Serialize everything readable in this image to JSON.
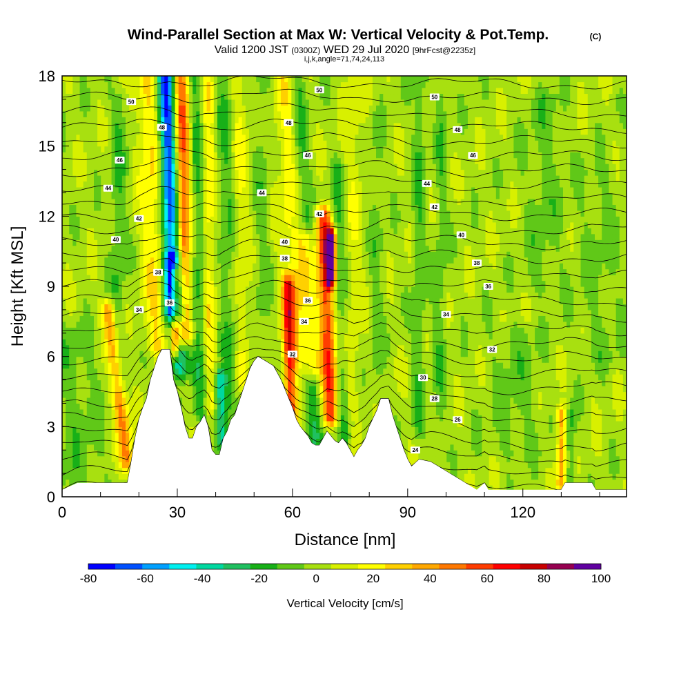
{
  "chart_data": {
    "type": "heatmap",
    "title": "Wind-Parallel Section at Max W: Vertical Velocity & Pot.Temp.",
    "title_mark": "(C)",
    "subtitle": {
      "valid": "Valid 1200 JST",
      "zulu": "(0300Z)",
      "date": "WED 29 Jul 2020",
      "forecast": "[9hrFcst@2235z]"
    },
    "section_info": "i,j,k,angle=71,74,24,113",
    "xlabel": "Distance [nm]",
    "ylabel": "Height [Kft MSL]",
    "xlim": [
      0,
      147
    ],
    "ylim": [
      0,
      18
    ],
    "x_ticks": [
      0,
      30,
      60,
      90,
      120
    ],
    "y_ticks": [
      0,
      3,
      6,
      9,
      12,
      15,
      18
    ],
    "colorbar": {
      "label": "Vertical Velocity [cm/s]",
      "ticks": [
        -80,
        -60,
        -40,
        -20,
        0,
        20,
        40,
        60,
        80,
        100
      ],
      "bounds": [
        -80,
        -70,
        -60,
        -50,
        -40,
        -30,
        -20,
        -10,
        0,
        10,
        20,
        30,
        40,
        50,
        60,
        70,
        80,
        90,
        100
      ],
      "colors": [
        "#0000ff",
        "#0050ff",
        "#00a0ff",
        "#00f0f0",
        "#00d8a0",
        "#20c060",
        "#18b018",
        "#60c818",
        "#a8e010",
        "#d8f000",
        "#ffff00",
        "#ffd000",
        "#ffa800",
        "#ff7800",
        "#ff3c00",
        "#ff0000",
        "#c80000",
        "#960050",
        "#6000a0"
      ]
    },
    "theta_contour_labels": [
      {
        "value": "24",
        "x": 92,
        "y": 2.0
      },
      {
        "value": "26",
        "x": 103,
        "y": 3.3
      },
      {
        "value": "28",
        "x": 97,
        "y": 4.2
      },
      {
        "value": "30",
        "x": 94,
        "y": 5.1
      },
      {
        "value": "32",
        "x": 60,
        "y": 6.1
      },
      {
        "value": "32",
        "x": 112,
        "y": 6.3
      },
      {
        "value": "34",
        "x": 20,
        "y": 8.0
      },
      {
        "value": "34",
        "x": 63,
        "y": 7.5
      },
      {
        "value": "34",
        "x": 100,
        "y": 7.8
      },
      {
        "value": "36",
        "x": 28,
        "y": 8.3
      },
      {
        "value": "36",
        "x": 64,
        "y": 8.4
      },
      {
        "value": "36",
        "x": 111,
        "y": 9.0
      },
      {
        "value": "38",
        "x": 25,
        "y": 9.6
      },
      {
        "value": "38",
        "x": 58,
        "y": 10.2
      },
      {
        "value": "38",
        "x": 108,
        "y": 10.0
      },
      {
        "value": "40",
        "x": 14,
        "y": 11.0
      },
      {
        "value": "40",
        "x": 58,
        "y": 10.9
      },
      {
        "value": "40",
        "x": 104,
        "y": 11.2
      },
      {
        "value": "42",
        "x": 20,
        "y": 11.9
      },
      {
        "value": "42",
        "x": 67,
        "y": 12.1
      },
      {
        "value": "42",
        "x": 97,
        "y": 12.4
      },
      {
        "value": "44",
        "x": 12,
        "y": 13.2
      },
      {
        "value": "44",
        "x": 52,
        "y": 13.0
      },
      {
        "value": "44",
        "x": 95,
        "y": 13.4
      },
      {
        "value": "46",
        "x": 15,
        "y": 14.4
      },
      {
        "value": "46",
        "x": 64,
        "y": 14.6
      },
      {
        "value": "46",
        "x": 107,
        "y": 14.6
      },
      {
        "value": "48",
        "x": 26,
        "y": 15.8
      },
      {
        "value": "48",
        "x": 59,
        "y": 16.0
      },
      {
        "value": "48",
        "x": 103,
        "y": 15.7
      },
      {
        "value": "50",
        "x": 18,
        "y": 16.9
      },
      {
        "value": "50",
        "x": 67,
        "y": 17.4
      },
      {
        "value": "50",
        "x": 97,
        "y": 17.1
      }
    ],
    "terrain_heights_kft": [
      [
        0,
        0.3
      ],
      [
        4,
        0.6
      ],
      [
        17,
        0.6
      ],
      [
        18,
        1.5
      ],
      [
        19,
        2.5
      ],
      [
        20,
        3.3
      ],
      [
        21,
        3.8
      ],
      [
        22,
        4.2
      ],
      [
        23,
        5.0
      ],
      [
        24,
        5.5
      ],
      [
        25,
        6.0
      ],
      [
        26,
        6.3
      ],
      [
        28,
        6.3
      ],
      [
        29,
        5.0
      ],
      [
        30,
        4.5
      ],
      [
        31,
        3.8
      ],
      [
        32,
        3.0
      ],
      [
        33,
        2.5
      ],
      [
        34,
        2.5
      ],
      [
        35,
        3.0
      ],
      [
        36,
        3.2
      ],
      [
        37,
        3.5
      ],
      [
        38,
        3.0
      ],
      [
        39,
        2.0
      ],
      [
        40,
        1.8
      ],
      [
        41,
        1.8
      ],
      [
        42,
        2.5
      ],
      [
        43,
        2.8
      ],
      [
        44,
        3.3
      ],
      [
        45,
        3.5
      ],
      [
        46,
        4.0
      ],
      [
        47,
        4.5
      ],
      [
        48,
        5.0
      ],
      [
        49,
        5.5
      ],
      [
        50,
        5.8
      ],
      [
        51,
        6.0
      ],
      [
        54,
        5.7
      ],
      [
        55,
        5.6
      ],
      [
        56,
        5.3
      ],
      [
        57,
        5.0
      ],
      [
        58,
        4.6
      ],
      [
        59,
        4.2
      ],
      [
        60,
        3.8
      ],
      [
        61,
        3.3
      ],
      [
        62,
        3.0
      ],
      [
        63,
        2.8
      ],
      [
        64,
        2.6
      ],
      [
        65,
        2.3
      ],
      [
        66,
        2.2
      ],
      [
        67,
        2.2
      ],
      [
        68,
        2.5
      ],
      [
        69,
        2.8
      ],
      [
        70,
        2.6
      ],
      [
        71,
        2.4
      ],
      [
        72,
        2.3
      ],
      [
        73,
        2.5
      ],
      [
        74,
        2.3
      ],
      [
        75,
        2.0
      ],
      [
        76,
        1.7
      ],
      [
        77,
        2.0
      ],
      [
        78,
        2.2
      ],
      [
        79,
        2.5
      ],
      [
        80,
        3.0
      ],
      [
        82,
        3.7
      ],
      [
        83,
        4.2
      ],
      [
        85,
        4.2
      ],
      [
        86,
        3.5
      ],
      [
        87,
        3.0
      ],
      [
        88,
        2.5
      ],
      [
        89,
        2.0
      ],
      [
        90,
        1.6
      ],
      [
        91,
        1.3
      ],
      [
        93,
        1.6
      ],
      [
        96,
        1.5
      ],
      [
        98,
        1.3
      ],
      [
        100,
        1.1
      ],
      [
        102,
        0.9
      ],
      [
        104,
        0.7
      ],
      [
        106,
        0.5
      ],
      [
        108,
        0.3
      ],
      [
        110,
        0.6
      ],
      [
        111,
        0.3
      ],
      [
        130,
        0.3
      ],
      [
        131,
        0.6
      ],
      [
        138,
        0.6
      ],
      [
        139,
        0.3
      ],
      [
        147,
        0.3
      ]
    ],
    "w_features": [
      {
        "x0": 29,
        "y0": 8.0,
        "x1": 27,
        "y1": 18,
        "w": 2.2,
        "v": -75
      },
      {
        "x0": 31,
        "y0": 5.5,
        "x1": 29,
        "y1": 10,
        "w": 2.5,
        "v": -45
      },
      {
        "x0": 32,
        "y0": 7.0,
        "x1": 31,
        "y1": 18,
        "w": 2.0,
        "v": 55
      },
      {
        "x0": 29.5,
        "y0": 6.5,
        "x1": 29.5,
        "y1": 9.5,
        "w": 1.2,
        "v": 65
      },
      {
        "x0": 25,
        "y0": 6.5,
        "x1": 22,
        "y1": 18,
        "w": 3.0,
        "v": 25
      },
      {
        "x0": 17,
        "y0": 1.5,
        "x1": 12,
        "y1": 8,
        "w": 1.8,
        "v": 50
      },
      {
        "x0": 14,
        "y0": 5,
        "x1": 15,
        "y1": 17,
        "w": 2.2,
        "v": -15
      },
      {
        "x0": 70,
        "y0": 3.5,
        "x1": 68,
        "y1": 12,
        "w": 2.0,
        "v": 65
      },
      {
        "x0": 70,
        "y0": 9.5,
        "x1": 70,
        "y1": 11,
        "w": 1.2,
        "v": 95
      },
      {
        "x0": 65,
        "y0": 5.5,
        "x1": 63,
        "y1": 11,
        "w": 2.4,
        "v": 35
      },
      {
        "x0": 59.5,
        "y0": 3.5,
        "x1": 59,
        "y1": 9,
        "w": 1.6,
        "v": 60
      },
      {
        "x0": 61,
        "y0": 6,
        "x1": 58,
        "y1": 18,
        "w": 3.0,
        "v": 20
      },
      {
        "x0": 66,
        "y0": 2.5,
        "x1": 61,
        "y1": 18,
        "w": 2.2,
        "v": -20
      },
      {
        "x0": 73.5,
        "y0": 2.5,
        "x1": 72,
        "y1": 14,
        "w": 1.8,
        "v": -18
      },
      {
        "x0": 75,
        "y0": 4,
        "x1": 76,
        "y1": 18,
        "w": 2.5,
        "v": 12
      },
      {
        "x0": 44,
        "y0": 4,
        "x1": 42,
        "y1": 18,
        "w": 2.5,
        "v": -15
      },
      {
        "x0": 41.5,
        "y0": 2.5,
        "x1": 41,
        "y1": 5,
        "w": 1.5,
        "v": -45
      },
      {
        "x0": 47,
        "y0": 5,
        "x1": 46,
        "y1": 18,
        "w": 2.0,
        "v": 15
      },
      {
        "x0": 52,
        "y0": 6,
        "x1": 52,
        "y1": 18,
        "w": 2.0,
        "v": -10
      },
      {
        "x0": 36,
        "y0": 3.5,
        "x1": 35,
        "y1": 18,
        "w": 2.0,
        "v": -20
      },
      {
        "x0": 38.5,
        "y0": 4,
        "x1": 38,
        "y1": 18,
        "w": 1.8,
        "v": 22
      },
      {
        "x0": 82,
        "y0": 4.5,
        "x1": 82,
        "y1": 16,
        "w": 1.8,
        "v": -10
      },
      {
        "x0": 93,
        "y0": 3,
        "x1": 93,
        "y1": 18,
        "w": 1.6,
        "v": -15
      },
      {
        "x0": 98,
        "y0": 2,
        "x1": 99,
        "y1": 18,
        "w": 1.6,
        "v": -12
      },
      {
        "x0": 130,
        "y0": 0.6,
        "x1": 130,
        "y1": 3.5,
        "w": 1.2,
        "v": 40
      },
      {
        "x0": 132.5,
        "y0": 0.6,
        "x1": 132.5,
        "y1": 3.5,
        "w": 1.2,
        "v": -20
      },
      {
        "x0": 125,
        "y0": 9,
        "x1": 126,
        "y1": 17,
        "w": 5,
        "v": -10
      },
      {
        "x0": 118,
        "y0": 2,
        "x1": 118,
        "y1": 7,
        "w": 7,
        "v": -9
      },
      {
        "x0": 4,
        "y0": 0.5,
        "x1": 3,
        "y1": 7,
        "w": 8,
        "v": -10
      },
      {
        "x0": 140,
        "y0": 6,
        "x1": 140,
        "y1": 14,
        "w": 6,
        "v": -8
      }
    ]
  }
}
